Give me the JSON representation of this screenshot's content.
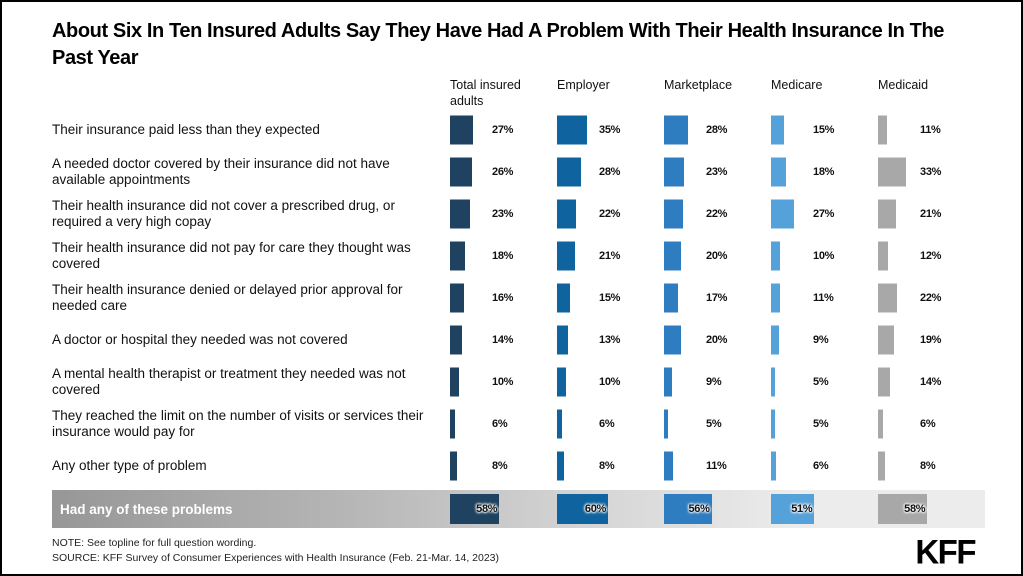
{
  "chart_data": {
    "type": "bar",
    "title": "About Six In Ten Insured Adults Say They Have Had A Problem With Their Health Insurance In The Past Year",
    "unit": "%",
    "legend_position": "top-columns",
    "value_range": [
      0,
      60
    ],
    "columns": [
      {
        "label": "Total insured adults",
        "color": "#1e425f"
      },
      {
        "label": "Employer",
        "color": "#0f649f"
      },
      {
        "label": "Marketplace",
        "color": "#2f7dc1"
      },
      {
        "label": "Medicare",
        "color": "#55a1da"
      },
      {
        "label": "Medicaid",
        "color": "#a8a8a8"
      }
    ],
    "rows": [
      {
        "label": "Their insurance paid less than they expected",
        "values": [
          27,
          35,
          28,
          15,
          11
        ]
      },
      {
        "label": "A needed doctor covered by their insurance did not have available appointments",
        "values": [
          26,
          28,
          23,
          18,
          33
        ]
      },
      {
        "label": "Their health insurance did not cover a prescribed drug, or required a very high copay",
        "values": [
          23,
          22,
          22,
          27,
          21
        ]
      },
      {
        "label": "Their health insurance did not pay for care they thought was covered",
        "values": [
          18,
          21,
          20,
          10,
          12
        ]
      },
      {
        "label": "Their health insurance denied or delayed prior approval for needed care",
        "values": [
          16,
          15,
          17,
          11,
          22
        ]
      },
      {
        "label": "A doctor or hospital they needed was not covered",
        "values": [
          14,
          13,
          20,
          9,
          19
        ]
      },
      {
        "label": "A mental health therapist or treatment they needed was not covered",
        "values": [
          10,
          10,
          9,
          5,
          14
        ]
      },
      {
        "label": "They reached the limit on the number of visits or services their insurance would pay for",
        "values": [
          6,
          6,
          5,
          5,
          6
        ]
      },
      {
        "label": "Any other type of problem",
        "values": [
          8,
          8,
          11,
          6,
          8
        ]
      }
    ],
    "summary_row": {
      "label": "Had any of these problems",
      "values": [
        58,
        60,
        56,
        51,
        58
      ]
    }
  },
  "footer": {
    "note": "NOTE: See topline for full question wording.",
    "source": "SOURCE: KFF Survey of Consumer Experiences with Health Insurance (Feb. 21-Mar. 14, 2023)",
    "logo": "KFF"
  }
}
